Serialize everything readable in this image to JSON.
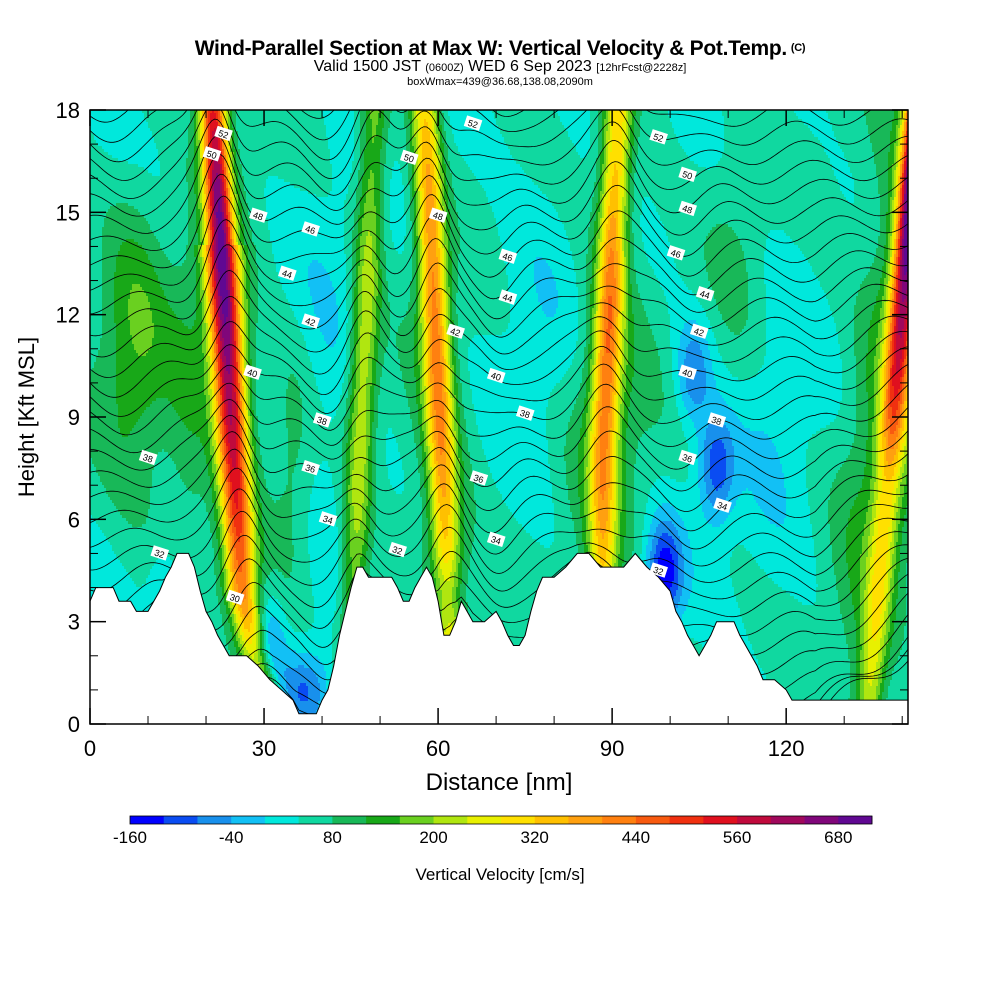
{
  "title": "Wind-Parallel Section at Max W: Vertical Velocity & Pot.Temp.",
  "title_mark": "(C)",
  "subtitle": {
    "valid": "Valid 1500 JST",
    "utc": "(0600Z)",
    "date": "WED 6 Sep 2023",
    "forecast": "[12hrFcst@2228z]"
  },
  "box_info": "boxWmax=439@36.68,138.08,2090m",
  "chart_data": {
    "type": "heatmap",
    "xlabel": "Distance [nm]",
    "ylabel": "Height [Kft MSL]",
    "xlim": [
      0,
      141
    ],
    "ylim": [
      0,
      18
    ],
    "x_ticks": [
      0,
      30,
      60,
      90,
      120
    ],
    "y_ticks": [
      0,
      3,
      6,
      9,
      12,
      15,
      18
    ],
    "colorbar": {
      "label": "Vertical Velocity [cm/s]",
      "tick_labels": [
        "-160",
        "-40",
        "80",
        "200",
        "320",
        "440",
        "560",
        "680"
      ],
      "levels": [
        -160,
        -120,
        -80,
        -40,
        0,
        40,
        80,
        120,
        160,
        200,
        240,
        280,
        320,
        360,
        400,
        440,
        480,
        520,
        560,
        600,
        640,
        680,
        720
      ],
      "colors": [
        "#0000ff",
        "#0a4cf2",
        "#1890ec",
        "#12c0f5",
        "#00e8dc",
        "#10d8a0",
        "#18b858",
        "#18a818",
        "#6ad020",
        "#b0e610",
        "#e8f000",
        "#ffe000",
        "#ffc000",
        "#ffa010",
        "#ff8010",
        "#f85a10",
        "#f03010",
        "#e0101e",
        "#c00a3c",
        "#a0085c",
        "#80067a",
        "#600892"
      ]
    },
    "updrafts": [
      {
        "x": 24,
        "peak": 600
      },
      {
        "x": 47,
        "peak": 190
      },
      {
        "x": 60,
        "peak": 350
      },
      {
        "x": 89,
        "peak": 340
      },
      {
        "x": 139,
        "peak": 720
      }
    ],
    "downdrafts": [
      {
        "x": 30,
        "y": 2.0,
        "min": -160
      },
      {
        "x": 99,
        "y": 4.4,
        "min": -160
      },
      {
        "x": 108,
        "y": 7.5,
        "min": -120
      },
      {
        "x": 104,
        "y": 10.3,
        "min": -90
      }
    ],
    "terrain": [
      [
        0,
        3.6
      ],
      [
        1,
        4.0
      ],
      [
        4,
        4.0
      ],
      [
        5,
        3.6
      ],
      [
        7,
        3.6
      ],
      [
        8,
        3.3
      ],
      [
        10,
        3.3
      ],
      [
        11,
        3.6
      ],
      [
        12,
        3.9
      ],
      [
        13,
        4.3
      ],
      [
        14,
        4.6
      ],
      [
        15,
        5.0
      ],
      [
        17,
        5.0
      ],
      [
        18,
        4.6
      ],
      [
        19,
        3.9
      ],
      [
        20,
        3.3
      ],
      [
        21,
        3.0
      ],
      [
        22,
        2.6
      ],
      [
        23,
        2.3
      ],
      [
        24,
        2.0
      ],
      [
        27,
        2.0
      ],
      [
        29,
        1.7
      ],
      [
        31,
        1.3
      ],
      [
        33,
        1.0
      ],
      [
        35,
        0.7
      ],
      [
        36,
        0.3
      ],
      [
        39,
        0.3
      ],
      [
        40,
        0.7
      ],
      [
        41,
        1.0
      ],
      [
        42,
        1.7
      ],
      [
        43,
        2.6
      ],
      [
        44,
        3.3
      ],
      [
        45,
        4.0
      ],
      [
        46,
        4.6
      ],
      [
        47,
        4.6
      ],
      [
        48,
        4.3
      ],
      [
        50,
        4.3
      ],
      [
        52,
        4.3
      ],
      [
        53,
        4.0
      ],
      [
        54,
        3.6
      ],
      [
        55,
        3.6
      ],
      [
        56,
        4.0
      ],
      [
        57,
        4.3
      ],
      [
        58,
        4.6
      ],
      [
        59,
        4.3
      ],
      [
        60,
        3.6
      ],
      [
        61,
        2.6
      ],
      [
        62,
        2.6
      ],
      [
        63,
        3.0
      ],
      [
        64,
        3.6
      ],
      [
        65,
        3.3
      ],
      [
        66,
        3.0
      ],
      [
        68,
        3.0
      ],
      [
        70,
        3.3
      ],
      [
        71,
        3.0
      ],
      [
        72,
        2.6
      ],
      [
        73,
        2.3
      ],
      [
        74,
        2.3
      ],
      [
        75,
        2.6
      ],
      [
        76,
        3.3
      ],
      [
        77,
        3.9
      ],
      [
        78,
        4.3
      ],
      [
        80,
        4.3
      ],
      [
        82,
        4.6
      ],
      [
        84,
        5.0
      ],
      [
        86,
        5.0
      ],
      [
        88,
        4.6
      ],
      [
        90,
        4.6
      ],
      [
        92,
        4.6
      ],
      [
        94,
        5.0
      ],
      [
        96,
        4.6
      ],
      [
        98,
        4.3
      ],
      [
        100,
        3.9
      ],
      [
        101,
        3.3
      ],
      [
        102,
        3.0
      ],
      [
        103,
        2.6
      ],
      [
        104,
        2.3
      ],
      [
        105,
        2.0
      ],
      [
        106,
        2.3
      ],
      [
        107,
        2.6
      ],
      [
        108,
        3.0
      ],
      [
        111,
        3.0
      ],
      [
        112,
        2.6
      ],
      [
        113,
        2.3
      ],
      [
        114,
        2.0
      ],
      [
        115,
        1.7
      ],
      [
        116,
        1.3
      ],
      [
        118,
        1.3
      ],
      [
        120,
        1.0
      ],
      [
        121,
        0.7
      ],
      [
        123,
        0.7
      ],
      [
        125,
        0.7
      ],
      [
        127,
        0.7
      ],
      [
        141,
        0.7
      ]
    ],
    "theta_contours": {
      "unit": "C",
      "count": 34,
      "labels": [
        {
          "text": "52",
          "x": 23,
          "y": 17.3
        },
        {
          "text": "50",
          "x": 21,
          "y": 16.7
        },
        {
          "text": "48",
          "x": 29,
          "y": 14.9
        },
        {
          "text": "46",
          "x": 38,
          "y": 14.5
        },
        {
          "text": "44",
          "x": 34,
          "y": 13.2
        },
        {
          "text": "42",
          "x": 38,
          "y": 11.8
        },
        {
          "text": "40",
          "x": 28,
          "y": 10.3
        },
        {
          "text": "38",
          "x": 10,
          "y": 7.8
        },
        {
          "text": "38",
          "x": 40,
          "y": 8.9
        },
        {
          "text": "36",
          "x": 38,
          "y": 7.5
        },
        {
          "text": "34",
          "x": 41,
          "y": 6.0
        },
        {
          "text": "32",
          "x": 12,
          "y": 5.0
        },
        {
          "text": "30",
          "x": 25,
          "y": 3.7
        },
        {
          "text": "52",
          "x": 66,
          "y": 17.6
        },
        {
          "text": "50",
          "x": 55,
          "y": 16.6
        },
        {
          "text": "48",
          "x": 60,
          "y": 14.9
        },
        {
          "text": "46",
          "x": 72,
          "y": 13.7
        },
        {
          "text": "44",
          "x": 72,
          "y": 12.5
        },
        {
          "text": "42",
          "x": 63,
          "y": 11.5
        },
        {
          "text": "40",
          "x": 70,
          "y": 10.2
        },
        {
          "text": "38",
          "x": 75,
          "y": 9.1
        },
        {
          "text": "36",
          "x": 67,
          "y": 7.2
        },
        {
          "text": "34",
          "x": 70,
          "y": 5.4
        },
        {
          "text": "32",
          "x": 53,
          "y": 5.1
        },
        {
          "text": "52",
          "x": 98,
          "y": 17.2
        },
        {
          "text": "50",
          "x": 103,
          "y": 16.1
        },
        {
          "text": "48",
          "x": 103,
          "y": 15.1
        },
        {
          "text": "46",
          "x": 101,
          "y": 13.8
        },
        {
          "text": "44",
          "x": 106,
          "y": 12.6
        },
        {
          "text": "42",
          "x": 105,
          "y": 11.5
        },
        {
          "text": "40",
          "x": 103,
          "y": 10.3
        },
        {
          "text": "38",
          "x": 108,
          "y": 8.9
        },
        {
          "text": "36",
          "x": 103,
          "y": 7.8
        },
        {
          "text": "34",
          "x": 109,
          "y": 6.4
        },
        {
          "text": "32",
          "x": 98,
          "y": 4.5
        }
      ]
    }
  }
}
